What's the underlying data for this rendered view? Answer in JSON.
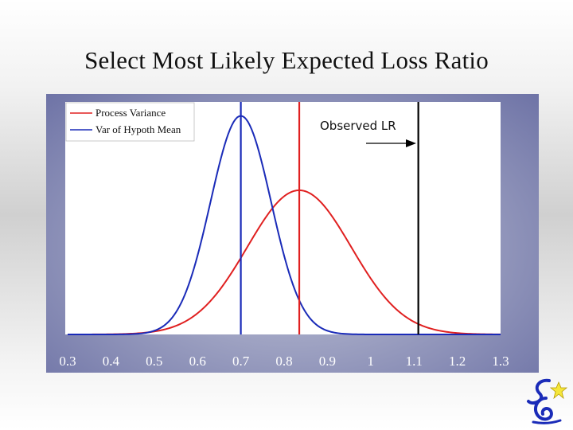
{
  "slide": {
    "title": "Select Most Likely Expected Loss Ratio"
  },
  "colors": {
    "process_variance": "#e02020",
    "var_hypoth_mean": "#1a2bb8",
    "observed": "#000000",
    "panel": "#8f93b8"
  },
  "chart_data": {
    "type": "line",
    "title": "",
    "xlabel": "",
    "ylabel": "",
    "xlim": [
      0.3,
      1.3
    ],
    "x_ticks": [
      "0.3",
      "0.4",
      "0.5",
      "0.6",
      "0.7",
      "0.8",
      "0.9",
      "1",
      "1.1",
      "1.2",
      "1.3"
    ],
    "series": [
      {
        "name": "Process Variance",
        "mean": 0.835,
        "sd": 0.12,
        "peak": 0.62,
        "color": "#e02020"
      },
      {
        "name": "Var of Hypoth Mean",
        "mean": 0.7,
        "sd": 0.07,
        "peak": 0.94,
        "color": "#1a2bb8"
      }
    ],
    "vertical_lines": [
      {
        "x": 0.7,
        "color": "#1a2bb8"
      },
      {
        "x": 0.835,
        "color": "#e02020"
      },
      {
        "x": 1.11,
        "color": "#000000"
      }
    ],
    "annotation": {
      "text": "Observed LR",
      "x": 1.11
    },
    "legend_position": "top-left"
  }
}
